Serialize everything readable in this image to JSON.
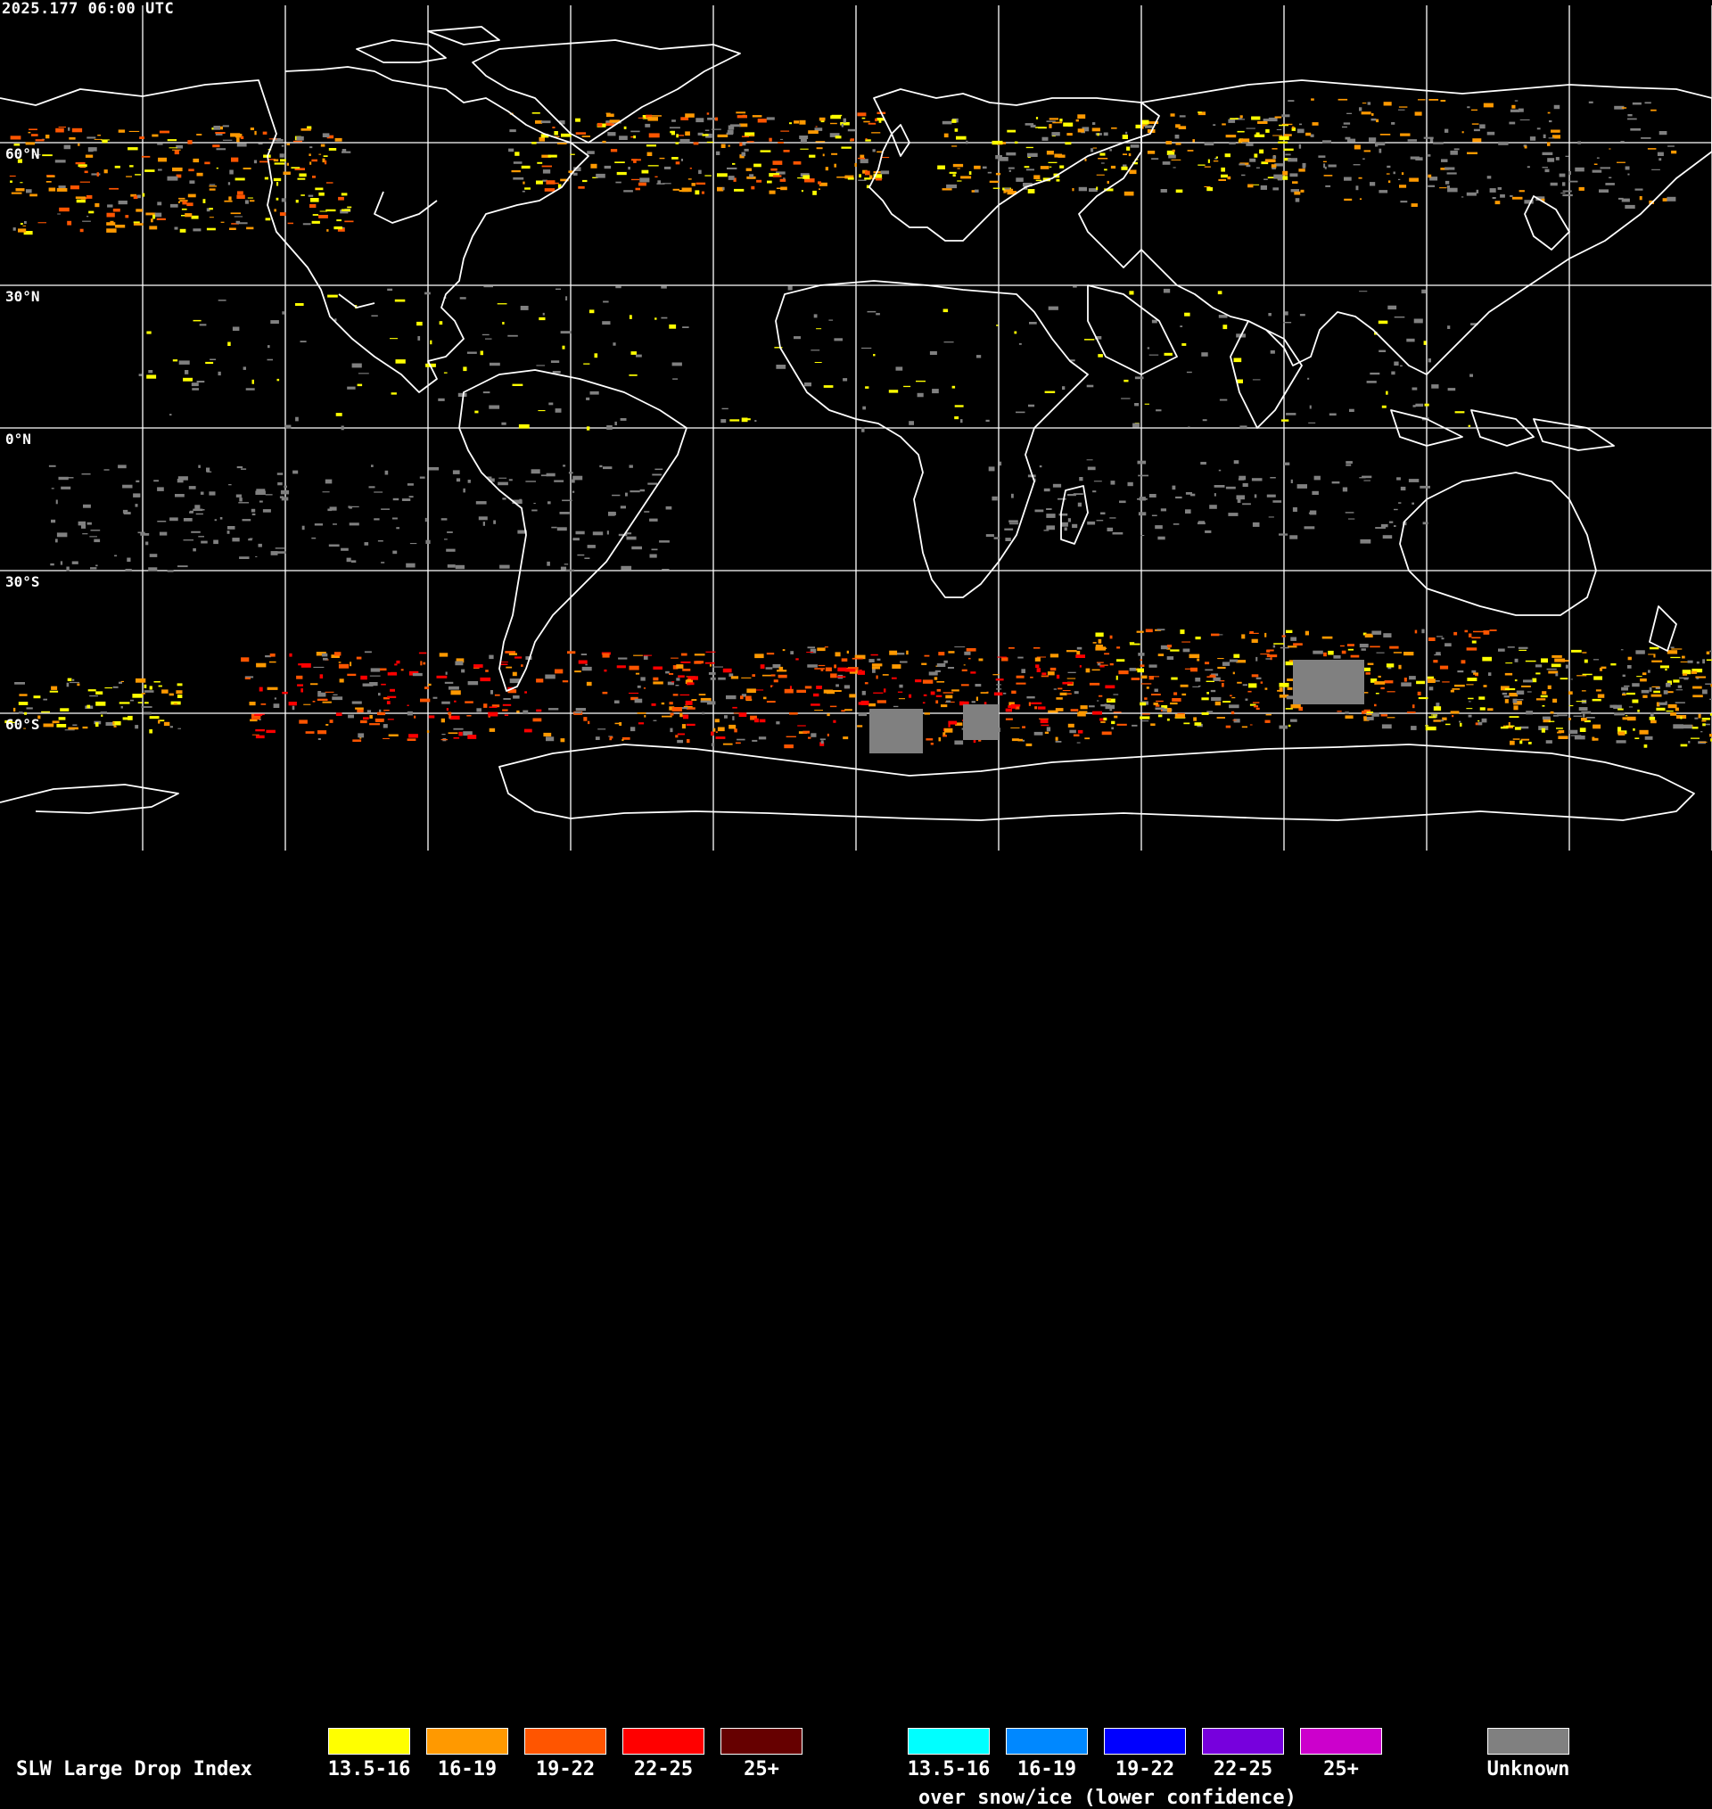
{
  "timestamp": "2025.177 06:00 UTC",
  "lat_labels": [
    "60°N",
    "30°N",
    "0°N",
    "30°S",
    "60°S"
  ],
  "map": {
    "background": "#000000",
    "coastline_color": "#ffffff",
    "grid_color": "#ffffff"
  },
  "legend": {
    "title": "SLW Large Drop Index",
    "normal": [
      {
        "label": "13.5-16",
        "color": "#ffff00"
      },
      {
        "label": "16-19",
        "color": "#ff9900"
      },
      {
        "label": "19-22",
        "color": "#ff5500"
      },
      {
        "label": "22-25",
        "color": "#ff0000"
      },
      {
        "label": "25+",
        "color": "#660000"
      }
    ],
    "snow_ice": [
      {
        "label": "13.5-16",
        "color": "#00ffff"
      },
      {
        "label": "16-19",
        "color": "#0088ff"
      },
      {
        "label": "19-22",
        "color": "#0000ff"
      },
      {
        "label": "22-25",
        "color": "#7700dd"
      },
      {
        "label": "25+",
        "color": "#cc00cc"
      }
    ],
    "snow_caption": "over snow/ice (lower confidence)",
    "unknown": {
      "label": "Unknown",
      "color": "#808080"
    }
  }
}
